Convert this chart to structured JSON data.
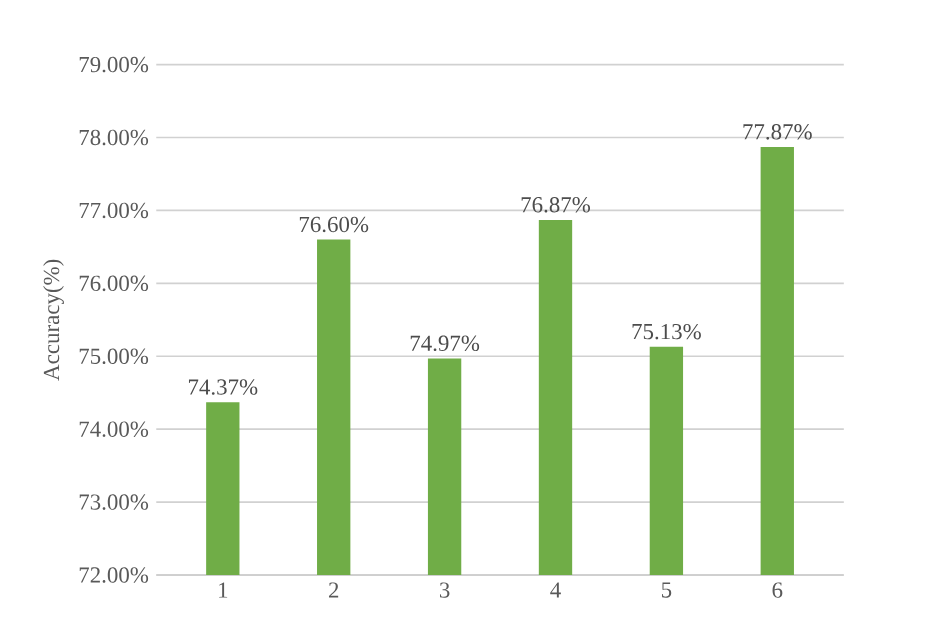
{
  "chart_data": {
    "type": "bar",
    "ylabel": "Accuracy(%)",
    "categories": [
      "1",
      "2",
      "3",
      "4",
      "5",
      "6"
    ],
    "values": [
      74.37,
      76.6,
      74.97,
      76.87,
      75.13,
      77.87
    ],
    "value_labels": [
      "74.37%",
      "76.60%",
      "74.97%",
      "76.87%",
      "75.13%",
      "77.87%"
    ],
    "color": "#70ad47",
    "ylim": [
      72,
      79
    ],
    "yticks": [
      {
        "value": 72,
        "label": "72.00%"
      },
      {
        "value": 73,
        "label": "73.00%"
      },
      {
        "value": 74,
        "label": "74.00%"
      },
      {
        "value": 75,
        "label": "75.00%"
      },
      {
        "value": 76,
        "label": "76.00%"
      },
      {
        "value": 77,
        "label": "77.00%"
      },
      {
        "value": 78,
        "label": "78.00%"
      },
      {
        "value": 79,
        "label": "79.00%"
      }
    ],
    "grid": "y"
  }
}
